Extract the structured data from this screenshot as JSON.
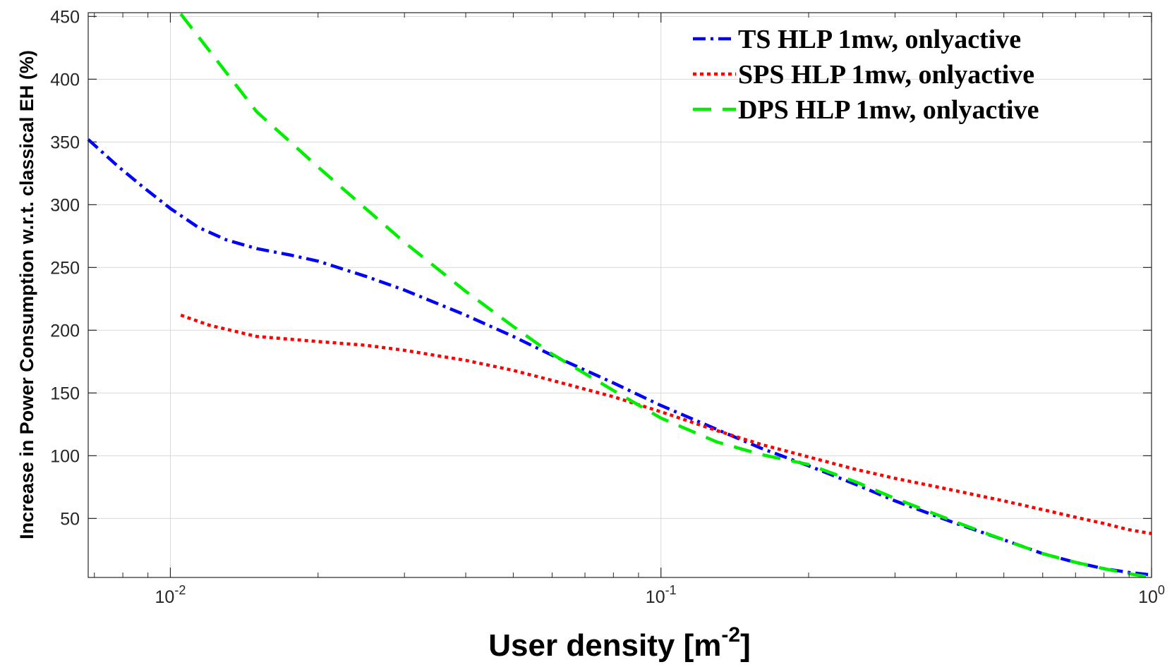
{
  "chart_data": {
    "type": "line",
    "xscale": "log",
    "xlim": [
      0.0068,
      1
    ],
    "ylim": [
      3,
      453
    ],
    "xlabel": "User density [m",
    "xlabel_sup": "-2",
    "xlabel_end": "]",
    "ylabel": "Increase in Power Consumption w.r.t. classical EH (%)",
    "grid": true,
    "legend_position": "top-right",
    "x_ticks": [
      {
        "value": 0.01,
        "base": "10",
        "exp": "-2"
      },
      {
        "value": 0.1,
        "base": "10",
        "exp": "-1"
      },
      {
        "value": 1,
        "base": "10",
        "exp": "0"
      }
    ],
    "y_ticks": [
      {
        "value": 50,
        "label": "50"
      },
      {
        "value": 100,
        "label": "100"
      },
      {
        "value": 150,
        "label": "150"
      },
      {
        "value": 200,
        "label": "200"
      },
      {
        "value": 250,
        "label": "250"
      },
      {
        "value": 300,
        "label": "300"
      },
      {
        "value": 350,
        "label": "350"
      },
      {
        "value": 400,
        "label": "400"
      },
      {
        "value": 450,
        "label": "450"
      }
    ],
    "series": [
      {
        "name": "TS HLP 1mw, onlyactive",
        "color": "#0000ff",
        "style": "dashdot",
        "x": [
          0.0068,
          0.0078,
          0.0088,
          0.01,
          0.0114,
          0.013,
          0.015,
          0.0175,
          0.02,
          0.025,
          0.03,
          0.04,
          0.05,
          0.06,
          0.08,
          0.1,
          0.13,
          0.16,
          0.2,
          0.25,
          0.3,
          0.4,
          0.5,
          0.6,
          0.7,
          0.8,
          0.9,
          1.0
        ],
        "y": [
          352,
          331,
          314,
          297,
          282,
          272,
          265,
          260,
          255,
          243,
          232,
          212,
          195,
          180,
          158,
          140,
          121,
          106,
          92,
          77,
          64,
          46,
          33,
          22,
          15,
          10,
          7,
          5
        ]
      },
      {
        "name": "SPS HLP 1mw, onlyactive",
        "color": "#ff0000",
        "style": "dotted",
        "x": [
          0.0105,
          0.012,
          0.015,
          0.02,
          0.025,
          0.03,
          0.04,
          0.05,
          0.06,
          0.08,
          0.1,
          0.13,
          0.16,
          0.2,
          0.25,
          0.3,
          0.4,
          0.5,
          0.6,
          0.7,
          0.8,
          0.9,
          1.0
        ],
        "y": [
          212,
          204,
          195,
          191,
          188,
          184,
          176,
          168,
          160,
          147,
          135,
          120,
          109,
          99,
          89,
          82,
          72,
          64,
          57,
          51,
          46,
          41,
          38
        ]
      },
      {
        "name": "DPS HLP 1mw, onlyactive",
        "color": "#00ee00",
        "style": "dashed",
        "x": [
          0.0105,
          0.015,
          0.02,
          0.03,
          0.04,
          0.05,
          0.06,
          0.08,
          0.1,
          0.13,
          0.16,
          0.2,
          0.25,
          0.3,
          0.4,
          0.5,
          0.6,
          0.7,
          0.8,
          0.9,
          1.0
        ],
        "y": [
          452,
          374,
          330,
          270,
          231,
          203,
          181,
          152,
          130,
          111,
          101,
          93,
          79,
          66,
          47,
          33,
          22,
          15,
          10,
          6,
          3
        ]
      }
    ]
  }
}
